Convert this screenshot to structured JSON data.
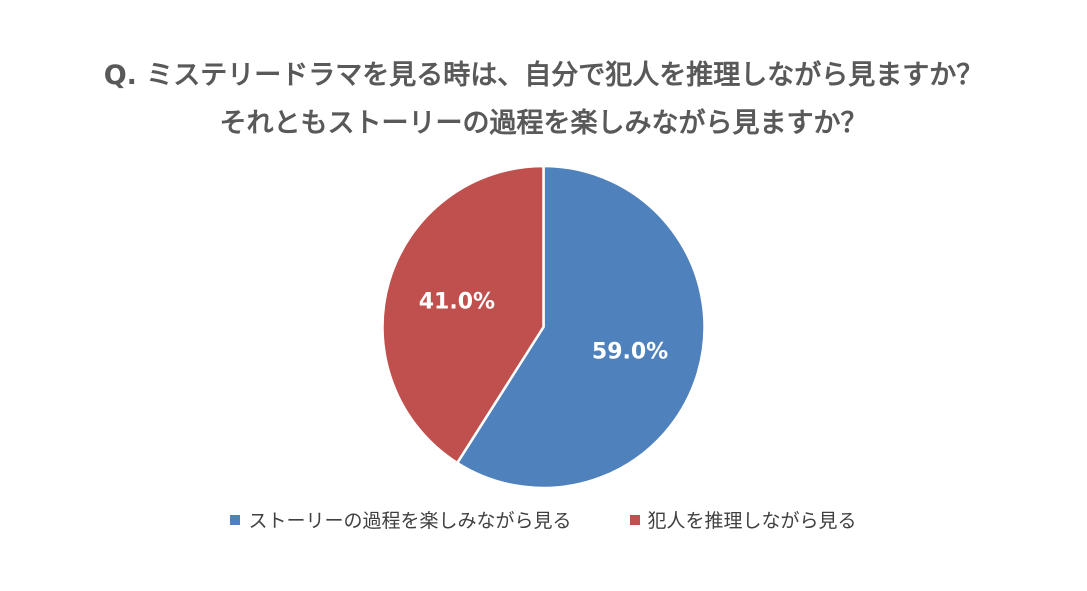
{
  "chart_data": {
    "type": "pie",
    "title_lines": [
      "Q. ミステリードラマを見る時は、自分で犯人を推理しながら見ますか？",
      "それともストーリーの過程を楽しみながら見ますか？"
    ],
    "categories": [
      "ストーリーの過程を楽しみながら見る",
      "犯人を推理しながら見る"
    ],
    "values": [
      59.0,
      41.0
    ],
    "data_labels": [
      "59.0%",
      "41.0%"
    ],
    "colors": [
      "#4F81BD",
      "#C0504D"
    ],
    "legend_position": "bottom",
    "start_angle": "12 o'clock, clockwise"
  }
}
